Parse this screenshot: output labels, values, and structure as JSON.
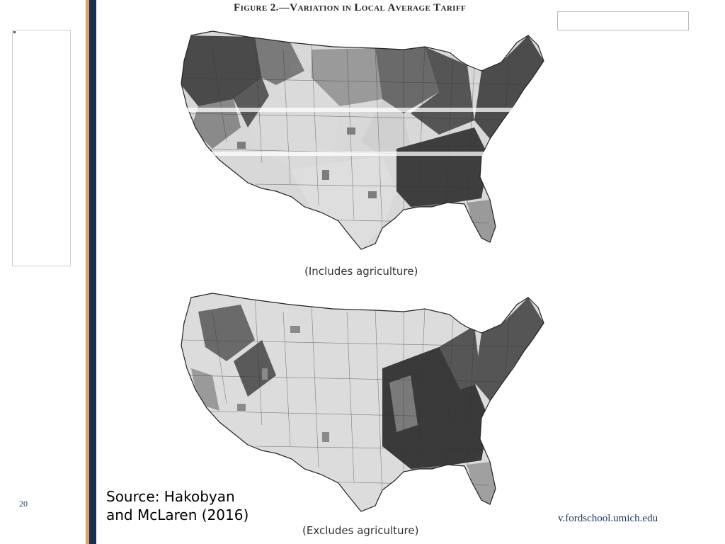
{
  "slide": {
    "number": "20",
    "figure_title": "Figure 2.—Variation in Local Average Tariff",
    "caption_top": "(Includes agriculture)",
    "caption_bottom": "(Excludes agriculture)",
    "source_line1": "Source:  Hakobyan",
    "source_line2": "and McLaren (2016)",
    "footer_url": "v.fordschool.umich.edu"
  },
  "colors": {
    "accent_gold": "#d9a35b",
    "accent_navy": "#1b2f55",
    "shade_dark": "#4a4a4a",
    "shade_mid": "#8a8a8a",
    "shade_light": "#d6d6d6"
  },
  "maps": [
    {
      "id": "includes-agriculture",
      "legend": "grayscale shading by local average tariff"
    },
    {
      "id": "excludes-agriculture",
      "legend": "grayscale shading by local average tariff"
    }
  ]
}
